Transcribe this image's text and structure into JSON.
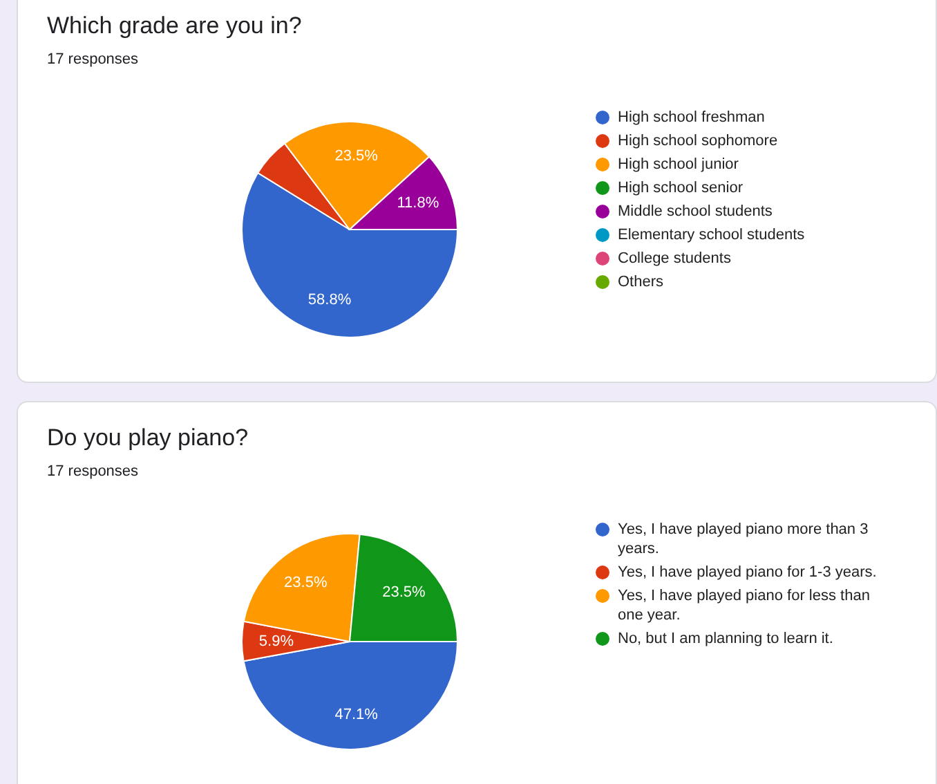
{
  "chart_data": [
    {
      "type": "pie",
      "title": "Which grade are you in?",
      "subtitle": "17 responses",
      "categories": [
        "High school freshman",
        "High school sophomore",
        "High school junior",
        "High school senior",
        "Middle school students",
        "Elementary school students",
        "College students",
        "Others"
      ],
      "values": [
        58.8,
        5.9,
        23.5,
        0,
        11.8,
        0,
        0,
        0
      ],
      "colors": [
        "#3366cc",
        "#dc3912",
        "#ff9900",
        "#109618",
        "#990099",
        "#0099c6",
        "#dd4477",
        "#66aa00"
      ],
      "value_labels": [
        "58.8%",
        null,
        "23.5%",
        null,
        "11.8%",
        null,
        null,
        null
      ],
      "legend": "right"
    },
    {
      "type": "pie",
      "title": "Do you play piano?",
      "subtitle": "17 responses",
      "categories": [
        "Yes, I have played piano more than 3 years.",
        "Yes, I have played piano for 1-3 years.",
        "Yes, I have played piano for less than one year.",
        "No, but I am planning to learn it."
      ],
      "values": [
        47.1,
        5.9,
        23.5,
        23.5
      ],
      "colors": [
        "#3366cc",
        "#dc3912",
        "#ff9900",
        "#109618"
      ],
      "value_labels": [
        "47.1%",
        "5.9%",
        "23.5%",
        "23.5%"
      ],
      "legend": "right"
    }
  ]
}
